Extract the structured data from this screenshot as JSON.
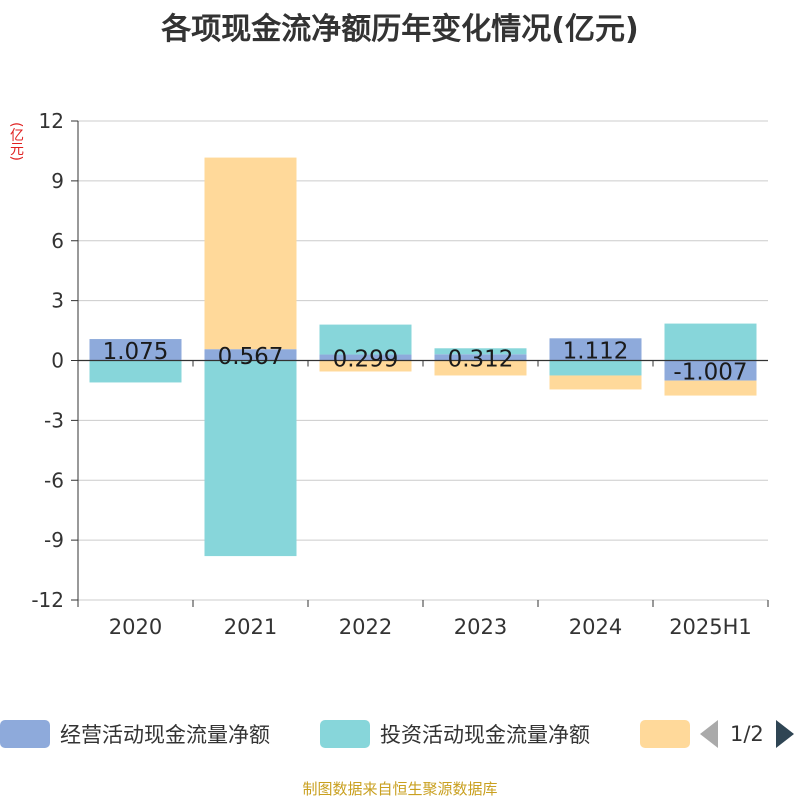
{
  "title": "各项现金流净额历年变化情况(亿元)",
  "unit_label": "(亿元)",
  "footer": "制图数据来自恒生聚源数据库",
  "legend": {
    "items": [
      {
        "label": "经营活动现金流量净额",
        "color": "#8EAADB"
      },
      {
        "label": "投资活动现金流量净额",
        "color": "#87D6DA"
      },
      {
        "label": "",
        "color": "#FFD99A"
      }
    ],
    "page": "1/2"
  },
  "chart_data": {
    "type": "bar",
    "stacked": true,
    "categories": [
      "2020",
      "2021",
      "2022",
      "2023",
      "2024",
      "2025H1"
    ],
    "ylim": [
      -12,
      12
    ],
    "yticks": [
      12,
      9,
      6,
      3,
      0,
      -3,
      -6,
      -9,
      -12
    ],
    "grid": true,
    "legend_position": "bottom",
    "series": [
      {
        "name": "经营活动现金流量净额",
        "color": "#8EAADB",
        "values": [
          1.075,
          0.567,
          0.299,
          0.312,
          1.112,
          -1.007
        ],
        "labels": [
          "1.075",
          "0.567",
          "0.299",
          "0.312",
          "1.112",
          "-1.007"
        ]
      },
      {
        "name": "投资活动现金流量净额",
        "color": "#87D6DA",
        "values": [
          -1.1,
          -9.8,
          1.5,
          0.3,
          -0.75,
          1.85
        ]
      },
      {
        "name": "",
        "color": "#FFD99A",
        "values": [
          0,
          9.6,
          -0.55,
          -0.75,
          -0.7,
          -0.75
        ]
      }
    ]
  }
}
